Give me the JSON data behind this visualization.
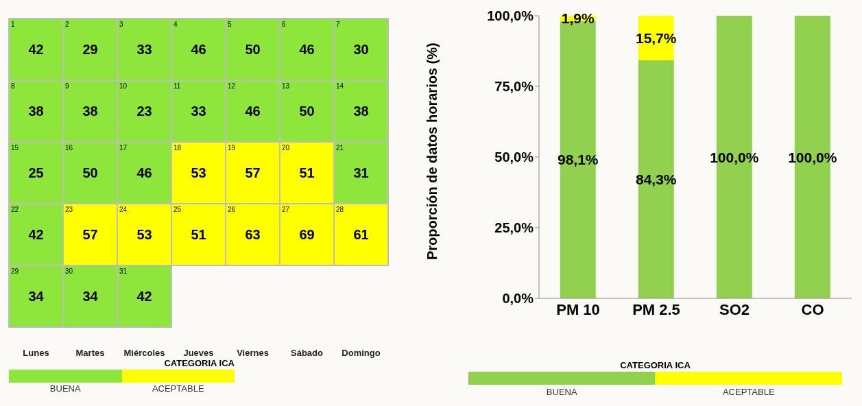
{
  "chart_data": [
    {
      "type": "heatmap",
      "categories": [
        "Lunes",
        "Martes",
        "Miércoles",
        "Jueves",
        "Viernes",
        "Sábado",
        "Domingo"
      ],
      "y_categories": [
        null,
        null,
        null,
        null,
        null
      ],
      "cells": [
        [
          42,
          29,
          33,
          46,
          50,
          46,
          30
        ],
        [
          38,
          38,
          23,
          33,
          46,
          50,
          38
        ],
        [
          25,
          50,
          46,
          53,
          57,
          51,
          31
        ],
        [
          42,
          57,
          53,
          51,
          63,
          69,
          61
        ],
        [
          34,
          34,
          42,
          null,
          null,
          null,
          null
        ]
      ],
      "data_labels": true,
      "colors": [
        [
          "#8ee63d",
          "#8ee63d",
          "#8ee63d",
          "#8ee63d",
          "#8ee63d",
          "#8ee63d",
          "#8ee63d"
        ],
        [
          "#8ee63d",
          "#8ee63d",
          "#8ee63d",
          "#8ee63d",
          "#8ee63d",
          "#8ee63d",
          "#8ee63d"
        ],
        [
          "#8ee63d",
          "#8ee63d",
          "#8ee63d",
          "#ffff00",
          "#ffff00",
          "#ffff00",
          "#8ee63d"
        ],
        [
          "#8ee63d",
          "#ffff00",
          "#ffff00",
          "#ffff00",
          "#ffff00",
          "#ffff00",
          "#ffff00"
        ],
        [
          "#8ee63d",
          "#8ee63d",
          "#8ee63d",
          null,
          null,
          null,
          null
        ]
      ],
      "annotations": [
        "1",
        "2",
        "3",
        "4",
        "5",
        "6",
        "7",
        "8",
        "9",
        "10",
        "11",
        "12",
        "13",
        "14",
        "15",
        "16",
        "17",
        "18",
        "19",
        "20",
        "21",
        "22",
        "23",
        "24",
        "25",
        "26",
        "27",
        "28",
        "29",
        "30",
        "31",
        "CATEGORIA ICA",
        "BUENA",
        "ACEPTABLE"
      ]
    },
    {
      "type": "bar",
      "categories": [
        "PM 10",
        "PM 2.5",
        "SO2",
        "CO"
      ],
      "stacked": true,
      "series": [
        {
          "color": "#92d050",
          "values": [
            98.1,
            84.3,
            100,
            100
          ],
          "value_labels": [
            "98,1%",
            "84,3%",
            "100,0%",
            "100,0%"
          ]
        },
        {
          "color": "#ffff00",
          "values": [
            1.9,
            15.7,
            0,
            0
          ],
          "value_labels": [
            "1,9%",
            "15,7%",
            null,
            null
          ]
        }
      ],
      "ylabel": "Proporción de datos horarios (%)",
      "ylim": [
        0,
        100
      ],
      "yticks": [
        {
          "value": 0,
          "label": "0,0%"
        },
        {
          "value": 25,
          "label": "25,0%"
        },
        {
          "value": 50,
          "label": "50,0%"
        },
        {
          "value": 75,
          "label": "75,0%"
        },
        {
          "value": 100,
          "label": "100,0%"
        }
      ],
      "annotations": [
        "CATEGORIA ICA",
        "BUENA",
        "ACEPTABLE"
      ]
    }
  ]
}
